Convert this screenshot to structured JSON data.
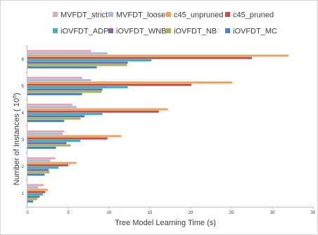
{
  "chart_data": {
    "type": "bar",
    "orientation": "horizontal",
    "categories": [
      "1",
      "2",
      "3",
      "4",
      "5",
      "6"
    ],
    "xlabel": "Tree Model Learning Time (s)",
    "ylabel": "Number of Instances ( 10",
    "ylabel_exp": "6",
    "ylabel_close": ")",
    "xlim": [
      0,
      35
    ],
    "xticks": [
      0,
      5,
      10,
      15,
      20,
      25,
      30,
      35
    ],
    "grid": false,
    "legend_position": "top",
    "series": [
      {
        "name": "MVFDT_strict",
        "color": "#e6a8b4",
        "values": [
          2.0,
          3.4,
          4.5,
          5.5,
          6.7,
          7.8
        ]
      },
      {
        "name": "MVFDT_loose",
        "color": "#a9bde0",
        "values": [
          1.3,
          2.8,
          4.3,
          6.0,
          7.8,
          9.8
        ]
      },
      {
        "name": "c45_unpruned",
        "color": "#f2a25e",
        "values": [
          2.5,
          6.0,
          11.5,
          17.2,
          25.1,
          32.0
        ]
      },
      {
        "name": "c45_pruned",
        "color": "#c0504d",
        "values": [
          2.2,
          5.0,
          9.8,
          16.1,
          20.1,
          27.5
        ]
      },
      {
        "name": "iOVFDT_ADP",
        "color": "#4bacc6",
        "values": [
          1.9,
          3.8,
          6.5,
          9.2,
          12.3,
          15.2
        ]
      },
      {
        "name": "iOVFDT_WNB",
        "color": "#8064a2",
        "values": [
          1.5,
          2.6,
          4.8,
          7.0,
          9.2,
          12.3
        ]
      },
      {
        "name": "iOVFDT_NB",
        "color": "#9bbb59",
        "values": [
          1.2,
          2.7,
          5.3,
          6.5,
          9.1,
          12.2
        ]
      },
      {
        "name": "iOVFDT_MC",
        "color": "#4f81bd",
        "values": [
          0.7,
          2.1,
          3.5,
          4.5,
          6.7,
          8.5
        ]
      }
    ]
  }
}
